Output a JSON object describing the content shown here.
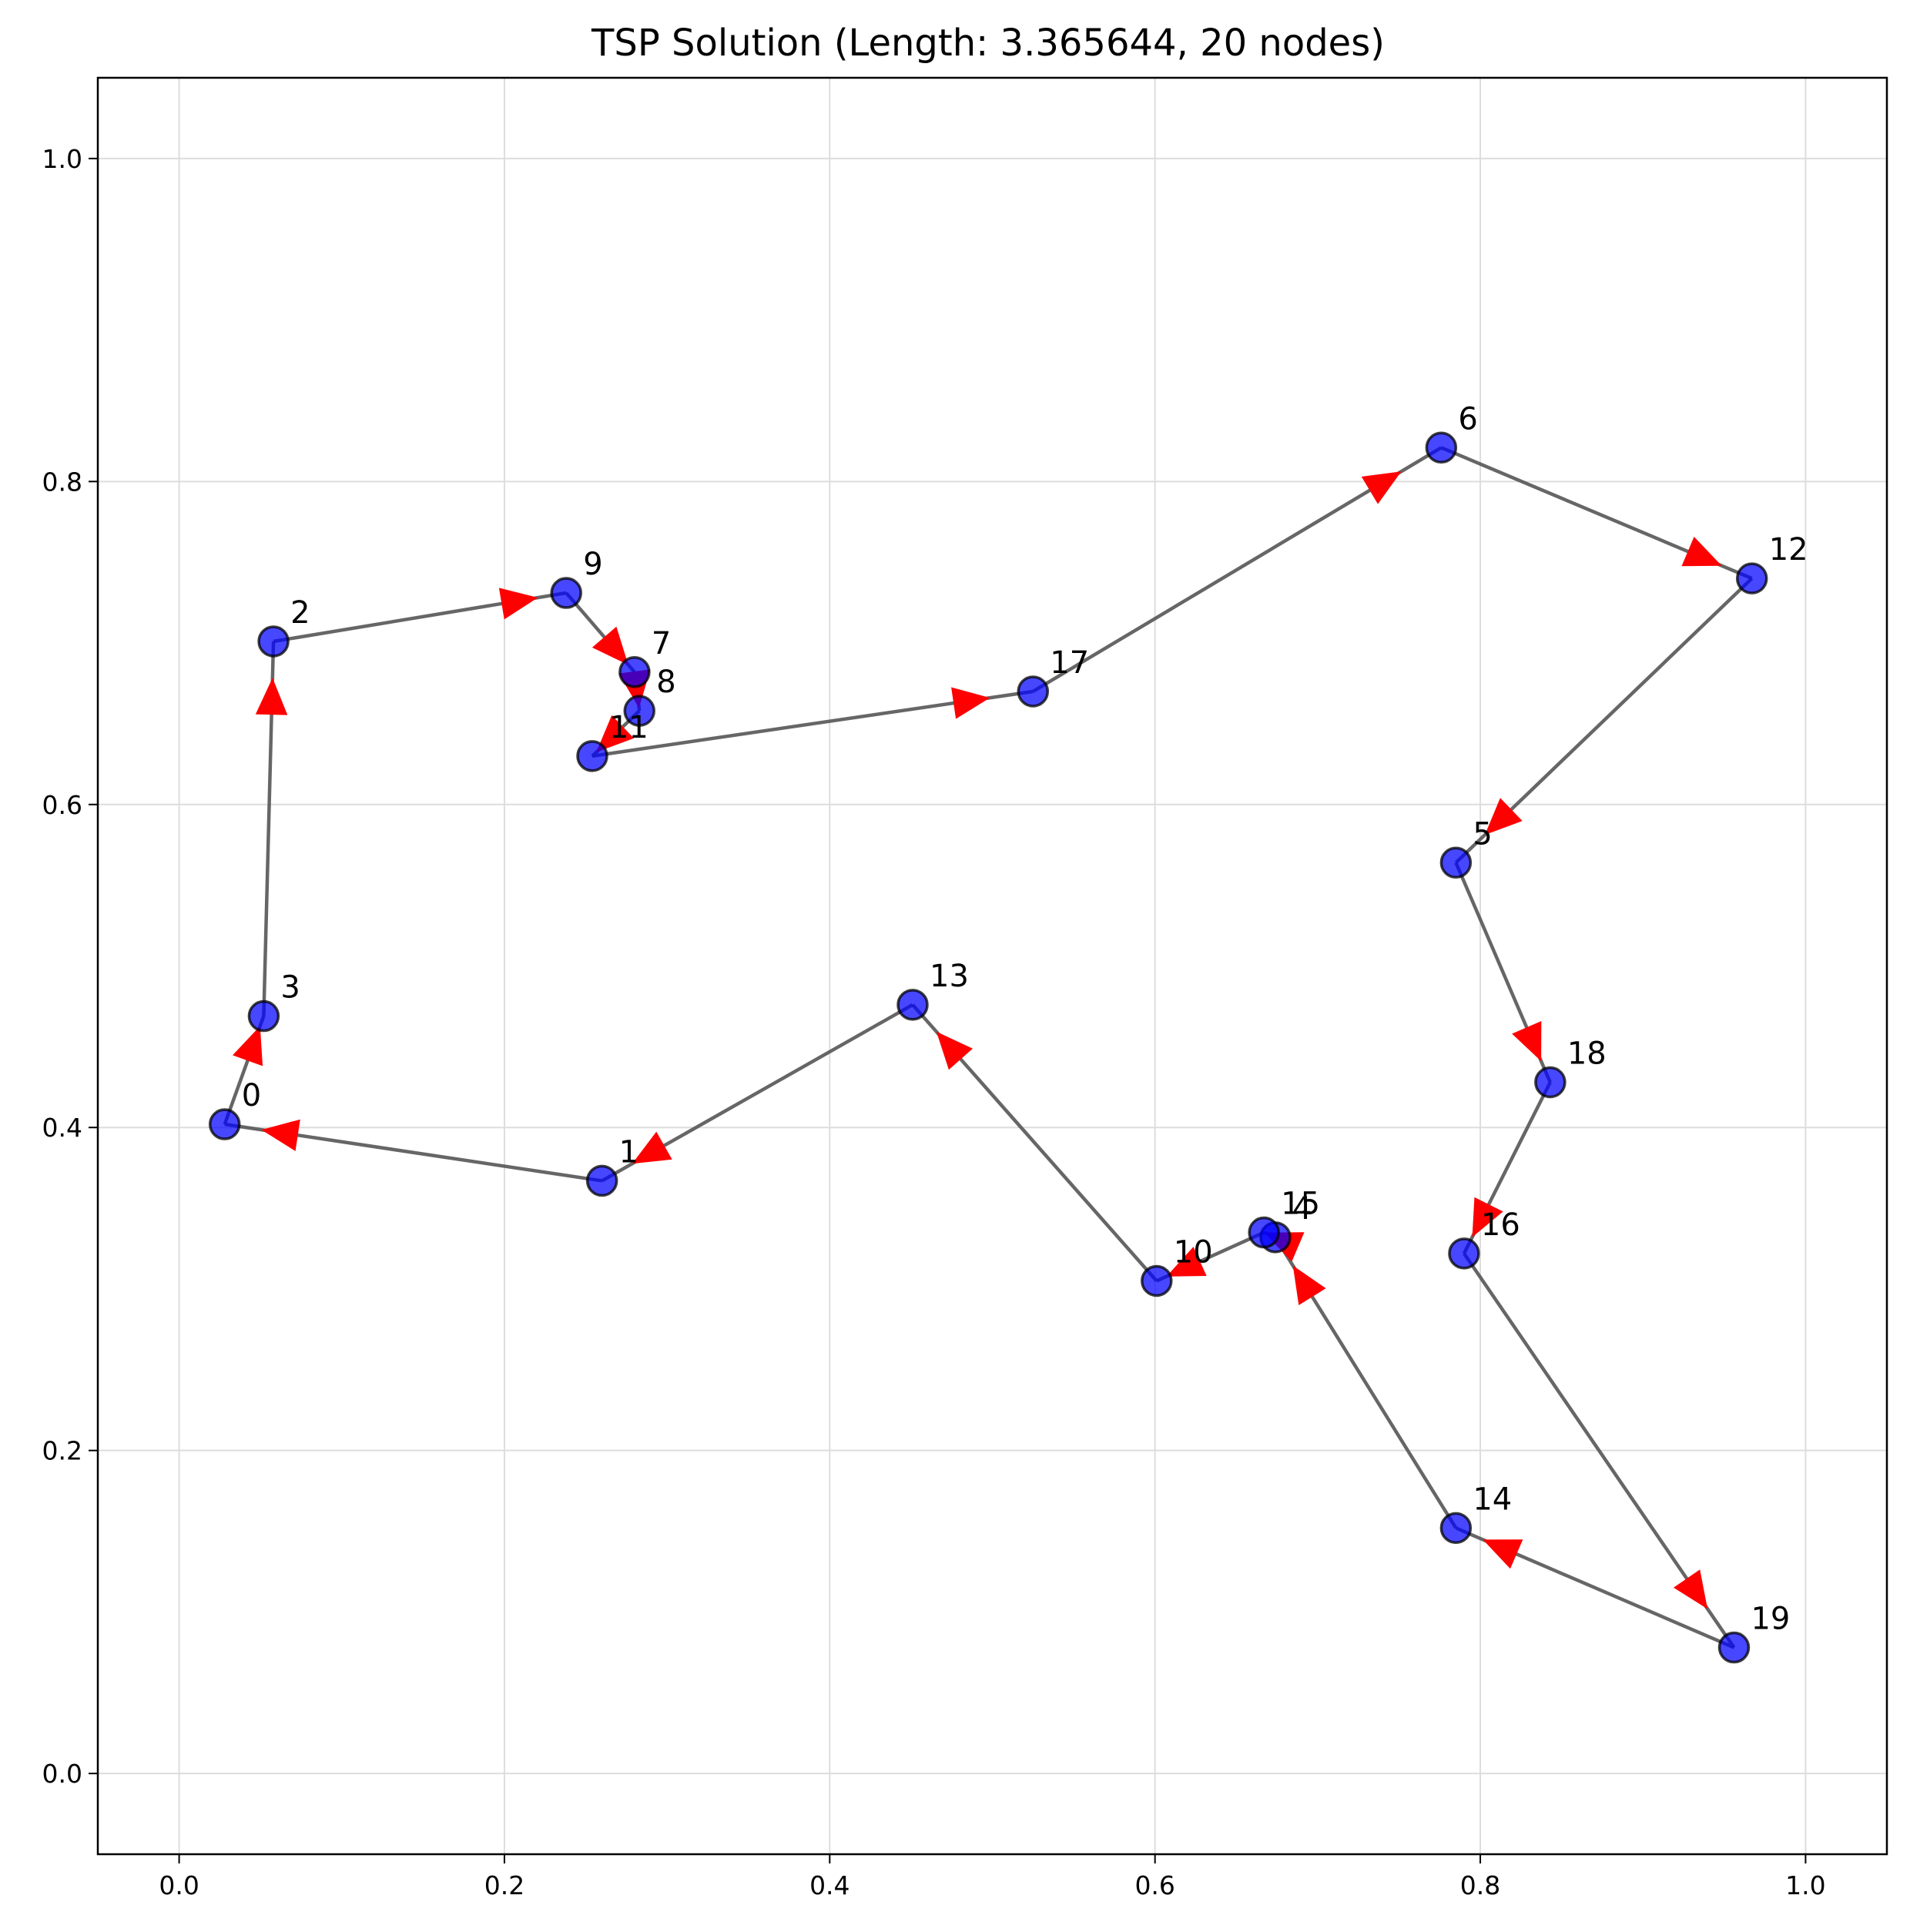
{
  "chart_data": {
    "type": "scatter",
    "title": "TSP Solution (Length: 3.365644, 20 nodes)",
    "xlabel": "",
    "ylabel": "",
    "xlim": [
      -0.05,
      1.05
    ],
    "ylim": [
      -0.05,
      1.05
    ],
    "x_ticks": [
      0.0,
      0.2,
      0.4,
      0.6,
      0.8,
      1.0
    ],
    "y_ticks": [
      0.0,
      0.2,
      0.4,
      0.6,
      0.8,
      1.0
    ],
    "x_tick_labels": [
      "0.0",
      "0.2",
      "0.4",
      "0.6",
      "0.8",
      "1.0"
    ],
    "y_tick_labels": [
      "0.0",
      "0.2",
      "0.4",
      "0.6",
      "0.8",
      "1.0"
    ],
    "grid": true,
    "colors": {
      "node_fill": "#0000ff",
      "node_edge": "#000000",
      "edge": "#555555",
      "arrow": "#ff0000",
      "grid": "#dddddd"
    },
    "nodes": [
      {
        "id": 0,
        "label": "0",
        "x": 0.028,
        "y": 0.402
      },
      {
        "id": 1,
        "label": "1",
        "x": 0.26,
        "y": 0.367
      },
      {
        "id": 2,
        "label": "2",
        "x": 0.058,
        "y": 0.701
      },
      {
        "id": 3,
        "label": "3",
        "x": 0.052,
        "y": 0.469
      },
      {
        "id": 4,
        "label": "4",
        "x": 0.674,
        "y": 0.332
      },
      {
        "id": 5,
        "label": "5",
        "x": 0.785,
        "y": 0.564
      },
      {
        "id": 6,
        "label": "6",
        "x": 0.776,
        "y": 0.821
      },
      {
        "id": 7,
        "label": "7",
        "x": 0.28,
        "y": 0.682
      },
      {
        "id": 8,
        "label": "8",
        "x": 0.283,
        "y": 0.658
      },
      {
        "id": 9,
        "label": "9",
        "x": 0.238,
        "y": 0.731
      },
      {
        "id": 10,
        "label": "10",
        "x": 0.601,
        "y": 0.305
      },
      {
        "id": 11,
        "label": "11",
        "x": 0.254,
        "y": 0.63
      },
      {
        "id": 12,
        "label": "12",
        "x": 0.967,
        "y": 0.74
      },
      {
        "id": 13,
        "label": "13",
        "x": 0.451,
        "y": 0.476
      },
      {
        "id": 14,
        "label": "14",
        "x": 0.785,
        "y": 0.152
      },
      {
        "id": 15,
        "label": "15",
        "x": 0.667,
        "y": 0.335
      },
      {
        "id": 16,
        "label": "16",
        "x": 0.79,
        "y": 0.322
      },
      {
        "id": 17,
        "label": "17",
        "x": 0.525,
        "y": 0.67
      },
      {
        "id": 18,
        "label": "18",
        "x": 0.843,
        "y": 0.428
      },
      {
        "id": 19,
        "label": "19",
        "x": 0.956,
        "y": 0.078
      }
    ],
    "tour": [
      0,
      3,
      2,
      9,
      7,
      8,
      11,
      17,
      6,
      12,
      5,
      18,
      16,
      19,
      14,
      4,
      15,
      10,
      13,
      1,
      0
    ]
  }
}
